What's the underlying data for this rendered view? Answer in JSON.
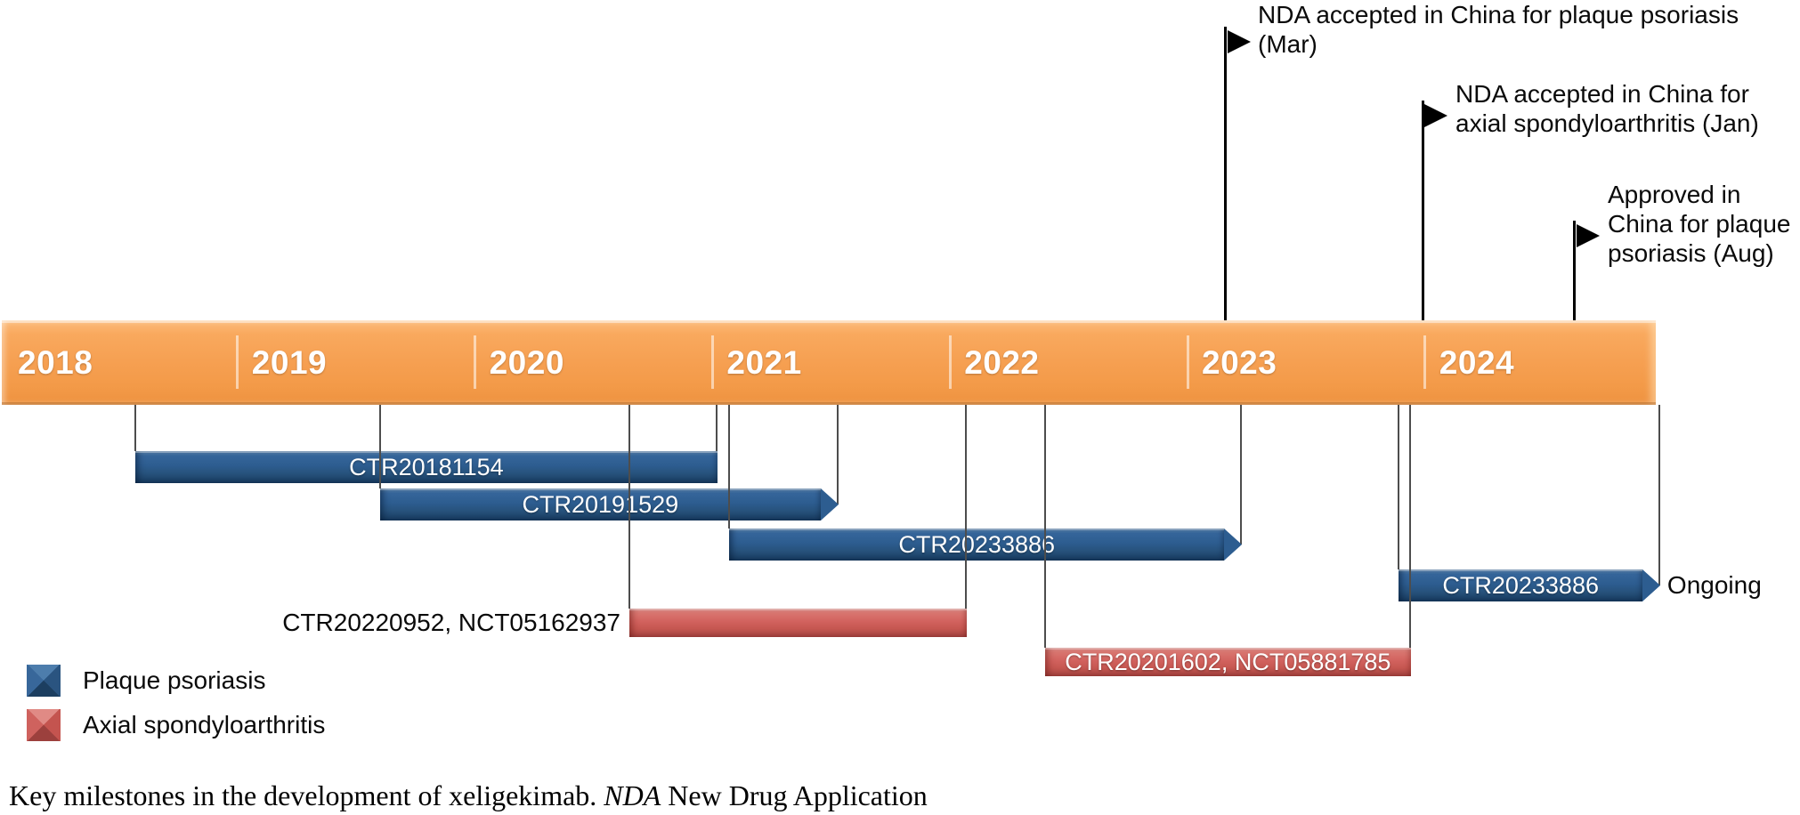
{
  "figure": {
    "caption": {
      "prefix": "Key milestones in the development of xeligekimab. ",
      "abbr": "NDA",
      "suffix": " New Drug Application"
    }
  },
  "legend": {
    "items": [
      {
        "label": "Plaque psoriasis",
        "color": "#2d5d90"
      },
      {
        "label": "Axial spondyloarthritis",
        "color": "#d2625e"
      }
    ]
  },
  "chart_data": {
    "type": "timeline",
    "title": "",
    "axis": {
      "years": [
        2018,
        2019,
        2020,
        2021,
        2022,
        2023,
        2024
      ],
      "start": 2018,
      "end": 2024.97,
      "grid": false
    },
    "colors": {
      "timeline": "#f6a052",
      "plaque_psoriasis": "#2d5d90",
      "axial_spondyloarthritis": "#d2625e"
    },
    "trials": [
      {
        "id": "CTR20181154",
        "indication": "Plaque psoriasis",
        "start": 2018.57,
        "end": 2021.02,
        "arrow": false,
        "row": 0,
        "label_inside": true
      },
      {
        "id": "CTR20191529",
        "indication": "Plaque psoriasis",
        "start": 2019.6,
        "end": 2021.53,
        "arrow": true,
        "row": 1,
        "label_inside": true
      },
      {
        "id": "CTR20233886",
        "indication": "Plaque psoriasis",
        "start": 2021.07,
        "end": 2023.23,
        "arrow": true,
        "row": 2,
        "label_inside": true
      },
      {
        "id": "CTR20233886",
        "indication": "Plaque psoriasis",
        "start": 2023.89,
        "end": 2024.99,
        "arrow": true,
        "row": 3,
        "label_inside": true,
        "suffix": "Ongoing"
      },
      {
        "id": "CTR20220952, NCT05162937",
        "indication": "Axial spondyloarthritis",
        "start": 2020.65,
        "end": 2022.07,
        "arrow": false,
        "row": 4,
        "label_inside": false
      },
      {
        "id": "CTR20201602, NCT05881785",
        "indication": "Axial spondyloarthritis",
        "start": 2022.4,
        "end": 2023.94,
        "arrow": false,
        "row": 5,
        "label_inside": true
      }
    ],
    "milestones": [
      {
        "x": 2023.16,
        "lines": [
          "NDA accepted in China for plaque psoriasis",
          "(Mar)"
        ]
      },
      {
        "x": 2023.99,
        "lines": [
          "NDA accepted in China for",
          "axial spondyloarthritis (Jan)"
        ]
      },
      {
        "x": 2024.63,
        "lines": [
          "Approved in",
          "China for plaque",
          "psoriasis (Aug)"
        ]
      }
    ]
  }
}
